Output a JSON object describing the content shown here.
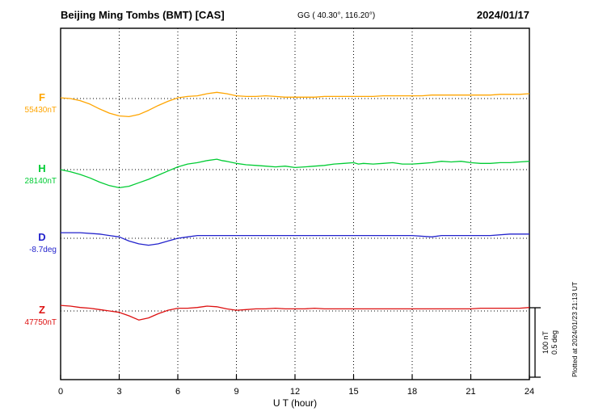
{
  "header": {
    "title": "Beijing Ming Tombs (BMT)  [CAS]",
    "coords": "GG ( 40.30°, 116.20°)",
    "date": "2024/01/17"
  },
  "plotted_note": "Plotted at 2024/01/23 21:13 UT",
  "scale_bar": {
    "nT": "100 nT",
    "deg": "0.5 deg"
  },
  "x_axis": {
    "label": "U T (hour)"
  },
  "chart_data": {
    "type": "line",
    "title": "Beijing Ming Tombs (BMT) [CAS] magnetogram for 2024/01/17",
    "xlabel": "U T (hour)",
    "x_range": [
      0,
      24
    ],
    "x_ticks": [
      0,
      3,
      6,
      9,
      12,
      15,
      18,
      21,
      24
    ],
    "grid": "vertical-dotted",
    "scale": {
      "nT_per_bar": 100,
      "deg_per_bar": 0.5
    },
    "series": [
      {
        "name": "F",
        "baseline_label": "55430nT",
        "baseline_value": 55430,
        "unit": "nT",
        "color": "#ffa500",
        "points": [
          [
            0,
            1
          ],
          [
            0.5,
            0
          ],
          [
            1,
            -3
          ],
          [
            1.5,
            -8
          ],
          [
            2,
            -15
          ],
          [
            2.5,
            -21
          ],
          [
            3,
            -25
          ],
          [
            3.5,
            -26
          ],
          [
            4,
            -23
          ],
          [
            4.5,
            -17
          ],
          [
            5,
            -10
          ],
          [
            5.5,
            -4
          ],
          [
            6,
            1
          ],
          [
            6.5,
            3
          ],
          [
            7,
            4
          ],
          [
            7.5,
            7
          ],
          [
            8,
            9
          ],
          [
            8.5,
            7
          ],
          [
            9,
            4
          ],
          [
            9.5,
            3
          ],
          [
            10,
            3
          ],
          [
            10.5,
            4
          ],
          [
            11,
            3
          ],
          [
            11.5,
            2
          ],
          [
            12,
            2
          ],
          [
            12.5,
            2
          ],
          [
            13,
            2
          ],
          [
            13.5,
            3
          ],
          [
            14,
            3
          ],
          [
            14.5,
            3
          ],
          [
            15,
            3
          ],
          [
            15.5,
            3
          ],
          [
            16,
            3
          ],
          [
            16.5,
            4
          ],
          [
            17,
            4
          ],
          [
            17.5,
            4
          ],
          [
            18,
            4
          ],
          [
            18.5,
            4
          ],
          [
            19,
            5
          ],
          [
            19.5,
            5
          ],
          [
            20,
            5
          ],
          [
            20.5,
            5
          ],
          [
            21,
            5
          ],
          [
            21.5,
            5
          ],
          [
            22,
            5
          ],
          [
            22.5,
            6
          ],
          [
            23,
            6
          ],
          [
            23.5,
            6
          ],
          [
            24,
            7
          ]
        ]
      },
      {
        "name": "H",
        "baseline_label": "28140nT",
        "baseline_value": 28140,
        "unit": "nT",
        "color": "#00cc33",
        "points": [
          [
            0,
            0
          ],
          [
            0.5,
            -3
          ],
          [
            1,
            -7
          ],
          [
            1.5,
            -12
          ],
          [
            2,
            -18
          ],
          [
            2.5,
            -23
          ],
          [
            3,
            -26
          ],
          [
            3.5,
            -24
          ],
          [
            4,
            -19
          ],
          [
            4.5,
            -14
          ],
          [
            5,
            -8
          ],
          [
            5.5,
            -2
          ],
          [
            6,
            4
          ],
          [
            6.5,
            8
          ],
          [
            7,
            10
          ],
          [
            7.5,
            13
          ],
          [
            8,
            15
          ],
          [
            8.25,
            13
          ],
          [
            8.5,
            12
          ],
          [
            9,
            9
          ],
          [
            9.5,
            7
          ],
          [
            10,
            6
          ],
          [
            10.5,
            5
          ],
          [
            11,
            4
          ],
          [
            11.5,
            5
          ],
          [
            12,
            3
          ],
          [
            12.5,
            4
          ],
          [
            13,
            5
          ],
          [
            13.5,
            6
          ],
          [
            14,
            8
          ],
          [
            14.5,
            9
          ],
          [
            15,
            10
          ],
          [
            15.25,
            8
          ],
          [
            15.5,
            9
          ],
          [
            16,
            8
          ],
          [
            16.5,
            9
          ],
          [
            17,
            10
          ],
          [
            17.5,
            8
          ],
          [
            18,
            8
          ],
          [
            18.5,
            9
          ],
          [
            19,
            10
          ],
          [
            19.5,
            12
          ],
          [
            20,
            11
          ],
          [
            20.5,
            12
          ],
          [
            21,
            10
          ],
          [
            21.5,
            9
          ],
          [
            22,
            9
          ],
          [
            22.5,
            10
          ],
          [
            23,
            10
          ],
          [
            23.5,
            11
          ],
          [
            24,
            12
          ]
        ]
      },
      {
        "name": "D",
        "baseline_label": "-8.7deg",
        "baseline_value": -8.7,
        "unit": "deg",
        "color": "#2222cc",
        "points": [
          [
            0,
            0.04
          ],
          [
            1,
            0.04
          ],
          [
            2,
            0.03
          ],
          [
            2.5,
            0.02
          ],
          [
            3,
            0.01
          ],
          [
            3.5,
            -0.02
          ],
          [
            4,
            -0.04
          ],
          [
            4.5,
            -0.05
          ],
          [
            5,
            -0.04
          ],
          [
            5.5,
            -0.02
          ],
          [
            6,
            0
          ],
          [
            6.5,
            0.01
          ],
          [
            7,
            0.02
          ],
          [
            7.5,
            0.02
          ],
          [
            8,
            0.02
          ],
          [
            9,
            0.02
          ],
          [
            10,
            0.02
          ],
          [
            11,
            0.02
          ],
          [
            12,
            0.02
          ],
          [
            13,
            0.02
          ],
          [
            14,
            0.02
          ],
          [
            15,
            0.02
          ],
          [
            16,
            0.02
          ],
          [
            17,
            0.02
          ],
          [
            18,
            0.02
          ],
          [
            19,
            0.01
          ],
          [
            19.5,
            0.02
          ],
          [
            20,
            0.02
          ],
          [
            21,
            0.02
          ],
          [
            22,
            0.02
          ],
          [
            23,
            0.03
          ],
          [
            24,
            0.03
          ]
        ]
      },
      {
        "name": "Z",
        "baseline_label": "47750nT",
        "baseline_value": 47750,
        "unit": "nT",
        "color": "#dd1111",
        "points": [
          [
            0,
            8
          ],
          [
            0.5,
            7
          ],
          [
            1,
            5
          ],
          [
            1.5,
            4
          ],
          [
            2,
            2
          ],
          [
            2.5,
            0
          ],
          [
            3,
            -2
          ],
          [
            3.5,
            -7
          ],
          [
            4,
            -13
          ],
          [
            4.5,
            -10
          ],
          [
            5,
            -4
          ],
          [
            5.5,
            1
          ],
          [
            6,
            4
          ],
          [
            6.5,
            4
          ],
          [
            7,
            5
          ],
          [
            7.5,
            7
          ],
          [
            8,
            6
          ],
          [
            8.5,
            3
          ],
          [
            9,
            1
          ],
          [
            9.5,
            2
          ],
          [
            10,
            3
          ],
          [
            10.5,
            3
          ],
          [
            11,
            4
          ],
          [
            11.5,
            3
          ],
          [
            12,
            3
          ],
          [
            12.5,
            3
          ],
          [
            13,
            4
          ],
          [
            13.5,
            3
          ],
          [
            14,
            3
          ],
          [
            14.5,
            3
          ],
          [
            15,
            3
          ],
          [
            15.5,
            3
          ],
          [
            16,
            3
          ],
          [
            16.5,
            3
          ],
          [
            17,
            3
          ],
          [
            17.5,
            3
          ],
          [
            18,
            3
          ],
          [
            18.5,
            3
          ],
          [
            19,
            3
          ],
          [
            19.5,
            3
          ],
          [
            20,
            3
          ],
          [
            20.5,
            3
          ],
          [
            21,
            3
          ],
          [
            21.5,
            4
          ],
          [
            22,
            4
          ],
          [
            22.5,
            4
          ],
          [
            23,
            4
          ],
          [
            23.5,
            4
          ],
          [
            24,
            5
          ]
        ]
      }
    ]
  }
}
